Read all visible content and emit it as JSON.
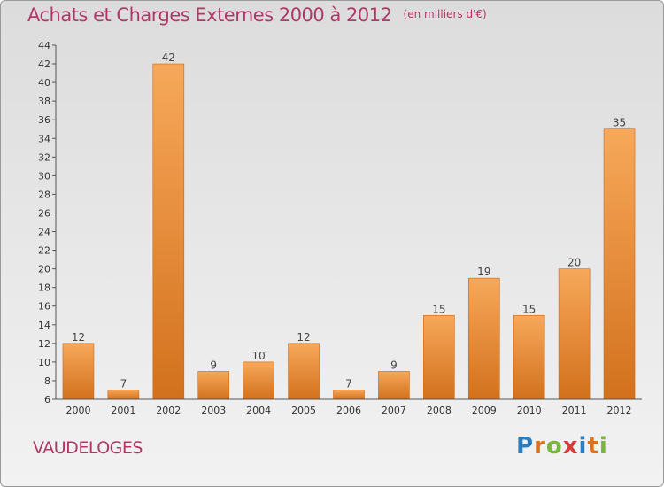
{
  "header": {
    "title": "Achats et Charges Externes 2000 à 2012",
    "unit": "(en milliers d'€)"
  },
  "commune": "VAUDELOGES",
  "brand": {
    "letters": [
      "P",
      "r",
      "o",
      "x",
      "i",
      "t",
      "i"
    ],
    "colors": [
      "#2a7fc2",
      "#e0711c",
      "#7ab63a",
      "#d93a3a",
      "#2a7fc2",
      "#e0711c",
      "#7ab63a"
    ]
  },
  "chart_data": {
    "type": "bar",
    "categories": [
      "2000",
      "2001",
      "2002",
      "2003",
      "2004",
      "2005",
      "2006",
      "2007",
      "2008",
      "2009",
      "2010",
      "2011",
      "2012"
    ],
    "values": [
      12,
      7,
      42,
      9,
      10,
      12,
      7,
      9,
      15,
      19,
      15,
      20,
      35
    ],
    "ylim": [
      6,
      44
    ],
    "yticks": [
      6,
      8,
      10,
      12,
      14,
      16,
      18,
      20,
      22,
      24,
      26,
      28,
      30,
      32,
      34,
      36,
      38,
      40,
      42,
      44
    ],
    "grid": false,
    "bar_color_light": "#f7a85a",
    "bar_color_dark": "#d2711c"
  }
}
